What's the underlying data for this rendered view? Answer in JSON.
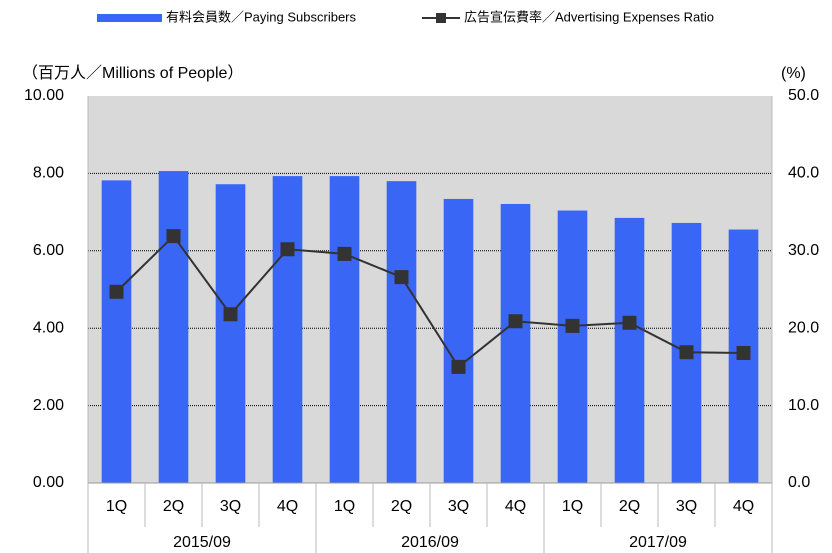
{
  "chart_data": {
    "type": "bar_line",
    "y_label": "（百万人／Millions of People）",
    "y2_label": "(%)",
    "categories": [
      "1Q",
      "2Q",
      "3Q",
      "4Q",
      "1Q",
      "2Q",
      "3Q",
      "4Q",
      "1Q",
      "2Q",
      "3Q",
      "4Q"
    ],
    "groups": [
      "2015/09",
      "2016/09",
      "2017/09"
    ],
    "series": [
      {
        "name": "有料会員数／Paying Subscribers",
        "color": "#3a66f5",
        "values": [
          7.82,
          8.06,
          7.72,
          7.93,
          7.93,
          7.8,
          7.34,
          7.21,
          7.04,
          6.85,
          6.72,
          6.55
        ]
      },
      {
        "name": "広告宣伝費率／Advertising Expenses Ratio",
        "color": "#333333",
        "axis": "y2",
        "values": [
          24.7,
          31.9,
          21.8,
          30.2,
          29.6,
          26.6,
          15.0,
          20.9,
          20.3,
          20.7,
          16.9,
          16.8
        ]
      }
    ],
    "ylim": [
      0,
      10
    ],
    "yticks": [
      {
        "value": 0,
        "label": "0.00"
      },
      {
        "value": 2,
        "label": "2.00"
      },
      {
        "value": 4,
        "label": "4.00"
      },
      {
        "value": 6,
        "label": "6.00"
      },
      {
        "value": 8,
        "label": "8.00"
      },
      {
        "value": 10,
        "label": "10.00"
      }
    ],
    "y2lim": [
      0,
      50
    ],
    "y2ticks": [
      {
        "value": 0,
        "label": "0.0"
      },
      {
        "value": 10,
        "label": "10.0"
      },
      {
        "value": 20,
        "label": "20.0"
      },
      {
        "value": 30,
        "label": "30.0"
      },
      {
        "value": 40,
        "label": "40.0"
      },
      {
        "value": 50,
        "label": "50.0"
      }
    ],
    "grid": true,
    "legend": "top"
  }
}
